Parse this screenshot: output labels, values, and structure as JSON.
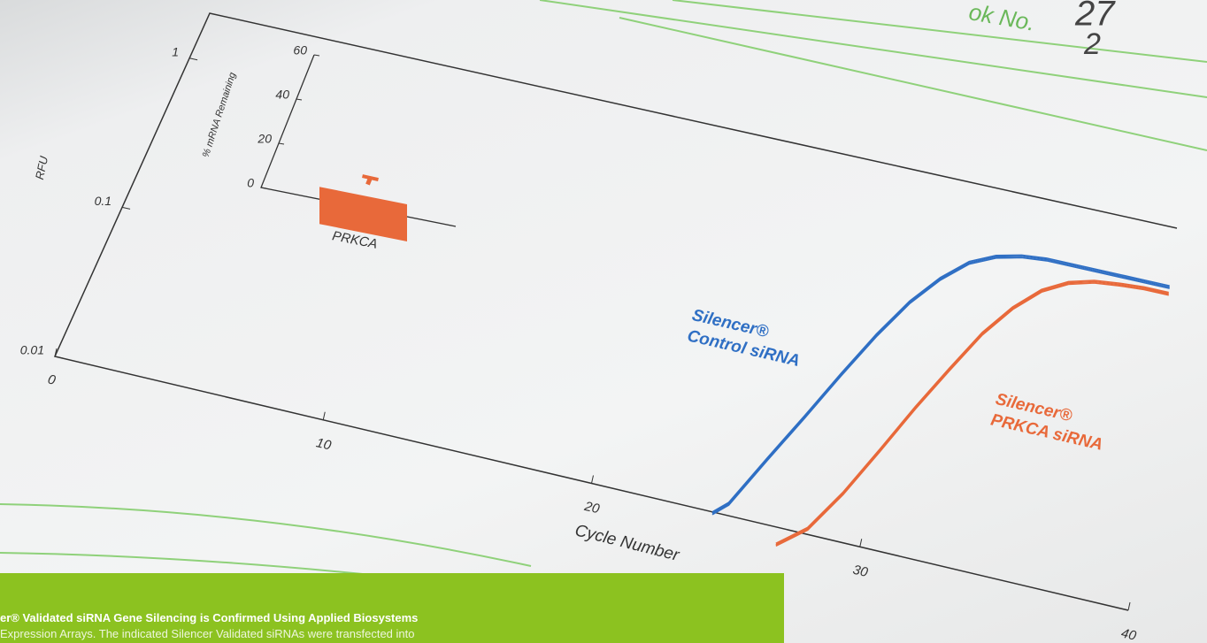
{
  "notebook": {
    "label": "ok No.",
    "entries": [
      "27",
      "2"
    ]
  },
  "chart_data": [
    {
      "type": "line",
      "y_label": "RFU",
      "x_label": "Cycle Number",
      "log_y": true,
      "x": [
        24.5,
        25,
        26,
        27,
        28,
        29,
        30,
        31,
        32,
        33,
        34,
        35,
        36,
        37,
        38,
        39,
        40
      ],
      "series": [
        {
          "name": "Silencer® Control siRNA",
          "color": "#2f6fc4",
          "values": [
            0.01,
            0.012,
            0.025,
            0.05,
            0.1,
            0.19,
            0.33,
            0.5,
            0.68,
            0.8,
            0.87,
            0.9,
            0.9,
            0.9,
            0.9,
            0.9,
            0.9
          ]
        },
        {
          "name": "Silencer® PRKCA siRNA",
          "color": "#e8693a",
          "values": [
            null,
            null,
            null,
            0.008,
            0.011,
            0.02,
            0.04,
            0.08,
            0.15,
            0.27,
            0.42,
            0.58,
            0.7,
            0.77,
            0.8,
            0.82,
            0.82
          ]
        }
      ],
      "xlim": [
        0,
        40
      ],
      "ylim": [
        0.01,
        2
      ],
      "xticks": [
        0,
        10,
        20,
        30,
        40
      ],
      "yticks": [
        {
          "value": 0.01,
          "label": "0.01"
        },
        {
          "value": 0.1,
          "label": "0.1"
        },
        1
      ]
    },
    {
      "type": "bar",
      "y_label": "% mRNA Remaining",
      "categories": [
        "PRKCA"
      ],
      "values": [
        5
      ],
      "errors": [
        3
      ],
      "color": "#e8693a",
      "ylim": [
        0,
        60
      ],
      "yticks": [
        0,
        20,
        40,
        60
      ]
    }
  ],
  "caption": [
    "er® Validated siRNA Gene Silencing is Confirmed Using Applied Biosystems",
    "Expression Arrays. The indicated Silencer Validated siRNAs were transfected into"
  ]
}
